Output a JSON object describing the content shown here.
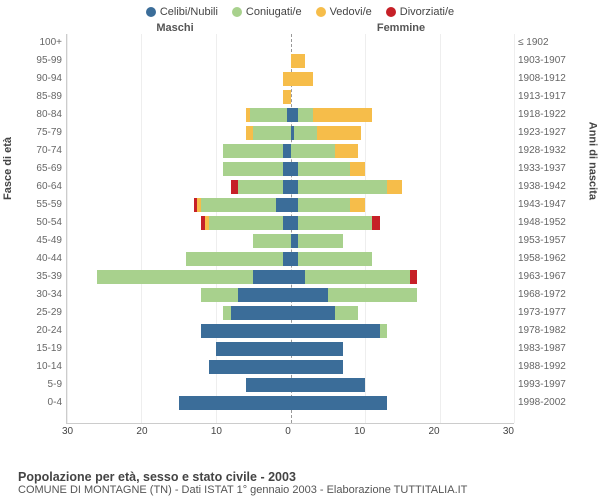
{
  "type": "population-pyramid",
  "legend": [
    {
      "label": "Celibi/Nubili",
      "color": "#3b6d99"
    },
    {
      "label": "Coniugati/e",
      "color": "#a8d18d"
    },
    {
      "label": "Vedovi/e",
      "color": "#f6bd4a"
    },
    {
      "label": "Divorziati/e",
      "color": "#c62027"
    }
  ],
  "labels": {
    "male": "Maschi",
    "female": "Femmine",
    "y_left": "Fasce di età",
    "y_right": "Anni di nascita",
    "title": "Popolazione per età, sesso e stato civile - 2003",
    "subtitle": "COMUNE DI MONTAGNE (TN) - Dati ISTAT 1° gennaio 2003 - Elaborazione TUTTITALIA.IT"
  },
  "axis": {
    "xmax": 30,
    "xticks": [
      30,
      20,
      10,
      0,
      10,
      20,
      30
    ],
    "label_fontsize": 10,
    "tick_color": "#444",
    "grid_color": "#eeeeee"
  },
  "style": {
    "background": "#ffffff",
    "center_line_color": "#999999",
    "row_height": 18.0,
    "bar_fill_ratio": 0.8
  },
  "age_bands": [
    {
      "age": "100+",
      "years": "≤ 1902"
    },
    {
      "age": "95-99",
      "years": "1903-1907"
    },
    {
      "age": "90-94",
      "years": "1908-1912"
    },
    {
      "age": "85-89",
      "years": "1913-1917"
    },
    {
      "age": "80-84",
      "years": "1918-1922"
    },
    {
      "age": "75-79",
      "years": "1923-1927"
    },
    {
      "age": "70-74",
      "years": "1928-1932"
    },
    {
      "age": "65-69",
      "years": "1933-1937"
    },
    {
      "age": "60-64",
      "years": "1938-1942"
    },
    {
      "age": "55-59",
      "years": "1943-1947"
    },
    {
      "age": "50-54",
      "years": "1948-1952"
    },
    {
      "age": "45-49",
      "years": "1953-1957"
    },
    {
      "age": "40-44",
      "years": "1958-1962"
    },
    {
      "age": "35-39",
      "years": "1963-1967"
    },
    {
      "age": "30-34",
      "years": "1968-1972"
    },
    {
      "age": "25-29",
      "years": "1973-1977"
    },
    {
      "age": "20-24",
      "years": "1978-1982"
    },
    {
      "age": "15-19",
      "years": "1983-1987"
    },
    {
      "age": "10-14",
      "years": "1988-1992"
    },
    {
      "age": "5-9",
      "years": "1993-1997"
    },
    {
      "age": "0-4",
      "years": "1998-2002"
    }
  ],
  "data": {
    "male": [
      {
        "cel": 0,
        "con": 0,
        "ved": 0,
        "div": 0
      },
      {
        "cel": 0,
        "con": 0,
        "ved": 0,
        "div": 0
      },
      {
        "cel": 0,
        "con": 0,
        "ved": 1,
        "div": 0
      },
      {
        "cel": 0,
        "con": 0,
        "ved": 1,
        "div": 0
      },
      {
        "cel": 0.5,
        "con": 5,
        "ved": 0.5,
        "div": 0
      },
      {
        "cel": 0,
        "con": 5,
        "ved": 1,
        "div": 0
      },
      {
        "cel": 1,
        "con": 8,
        "ved": 0,
        "div": 0
      },
      {
        "cel": 1,
        "con": 8,
        "ved": 0,
        "div": 0
      },
      {
        "cel": 1,
        "con": 6,
        "ved": 0,
        "div": 1
      },
      {
        "cel": 2,
        "con": 10,
        "ved": 0.5,
        "div": 0.5
      },
      {
        "cel": 1,
        "con": 10,
        "ved": 0.5,
        "div": 0.5
      },
      {
        "cel": 0,
        "con": 5,
        "ved": 0,
        "div": 0
      },
      {
        "cel": 1,
        "con": 13,
        "ved": 0,
        "div": 0
      },
      {
        "cel": 5,
        "con": 21,
        "ved": 0,
        "div": 0
      },
      {
        "cel": 7,
        "con": 5,
        "ved": 0,
        "div": 0
      },
      {
        "cel": 8,
        "con": 1,
        "ved": 0,
        "div": 0
      },
      {
        "cel": 12,
        "con": 0,
        "ved": 0,
        "div": 0
      },
      {
        "cel": 10,
        "con": 0,
        "ved": 0,
        "div": 0
      },
      {
        "cel": 11,
        "con": 0,
        "ved": 0,
        "div": 0
      },
      {
        "cel": 6,
        "con": 0,
        "ved": 0,
        "div": 0
      },
      {
        "cel": 15,
        "con": 0,
        "ved": 0,
        "div": 0
      }
    ],
    "female": [
      {
        "cel": 0,
        "con": 0,
        "ved": 0,
        "div": 0
      },
      {
        "cel": 0,
        "con": 0,
        "ved": 2,
        "div": 0
      },
      {
        "cel": 0,
        "con": 0,
        "ved": 3,
        "div": 0
      },
      {
        "cel": 0,
        "con": 0,
        "ved": 0,
        "div": 0
      },
      {
        "cel": 1,
        "con": 2,
        "ved": 8,
        "div": 0
      },
      {
        "cel": 0.5,
        "con": 3,
        "ved": 6,
        "div": 0
      },
      {
        "cel": 0,
        "con": 6,
        "ved": 3,
        "div": 0
      },
      {
        "cel": 1,
        "con": 7,
        "ved": 2,
        "div": 0
      },
      {
        "cel": 1,
        "con": 12,
        "ved": 2,
        "div": 0
      },
      {
        "cel": 1,
        "con": 7,
        "ved": 2,
        "div": 0
      },
      {
        "cel": 1,
        "con": 10,
        "ved": 0,
        "div": 1
      },
      {
        "cel": 1,
        "con": 6,
        "ved": 0,
        "div": 0
      },
      {
        "cel": 1,
        "con": 10,
        "ved": 0,
        "div": 0
      },
      {
        "cel": 2,
        "con": 14,
        "ved": 0,
        "div": 1
      },
      {
        "cel": 5,
        "con": 12,
        "ved": 0,
        "div": 0
      },
      {
        "cel": 6,
        "con": 3,
        "ved": 0,
        "div": 0
      },
      {
        "cel": 12,
        "con": 1,
        "ved": 0,
        "div": 0
      },
      {
        "cel": 7,
        "con": 0,
        "ved": 0,
        "div": 0
      },
      {
        "cel": 7,
        "con": 0,
        "ved": 0,
        "div": 0
      },
      {
        "cel": 10,
        "con": 0,
        "ved": 0,
        "div": 0
      },
      {
        "cel": 13,
        "con": 0,
        "ved": 0,
        "div": 0
      }
    ]
  }
}
